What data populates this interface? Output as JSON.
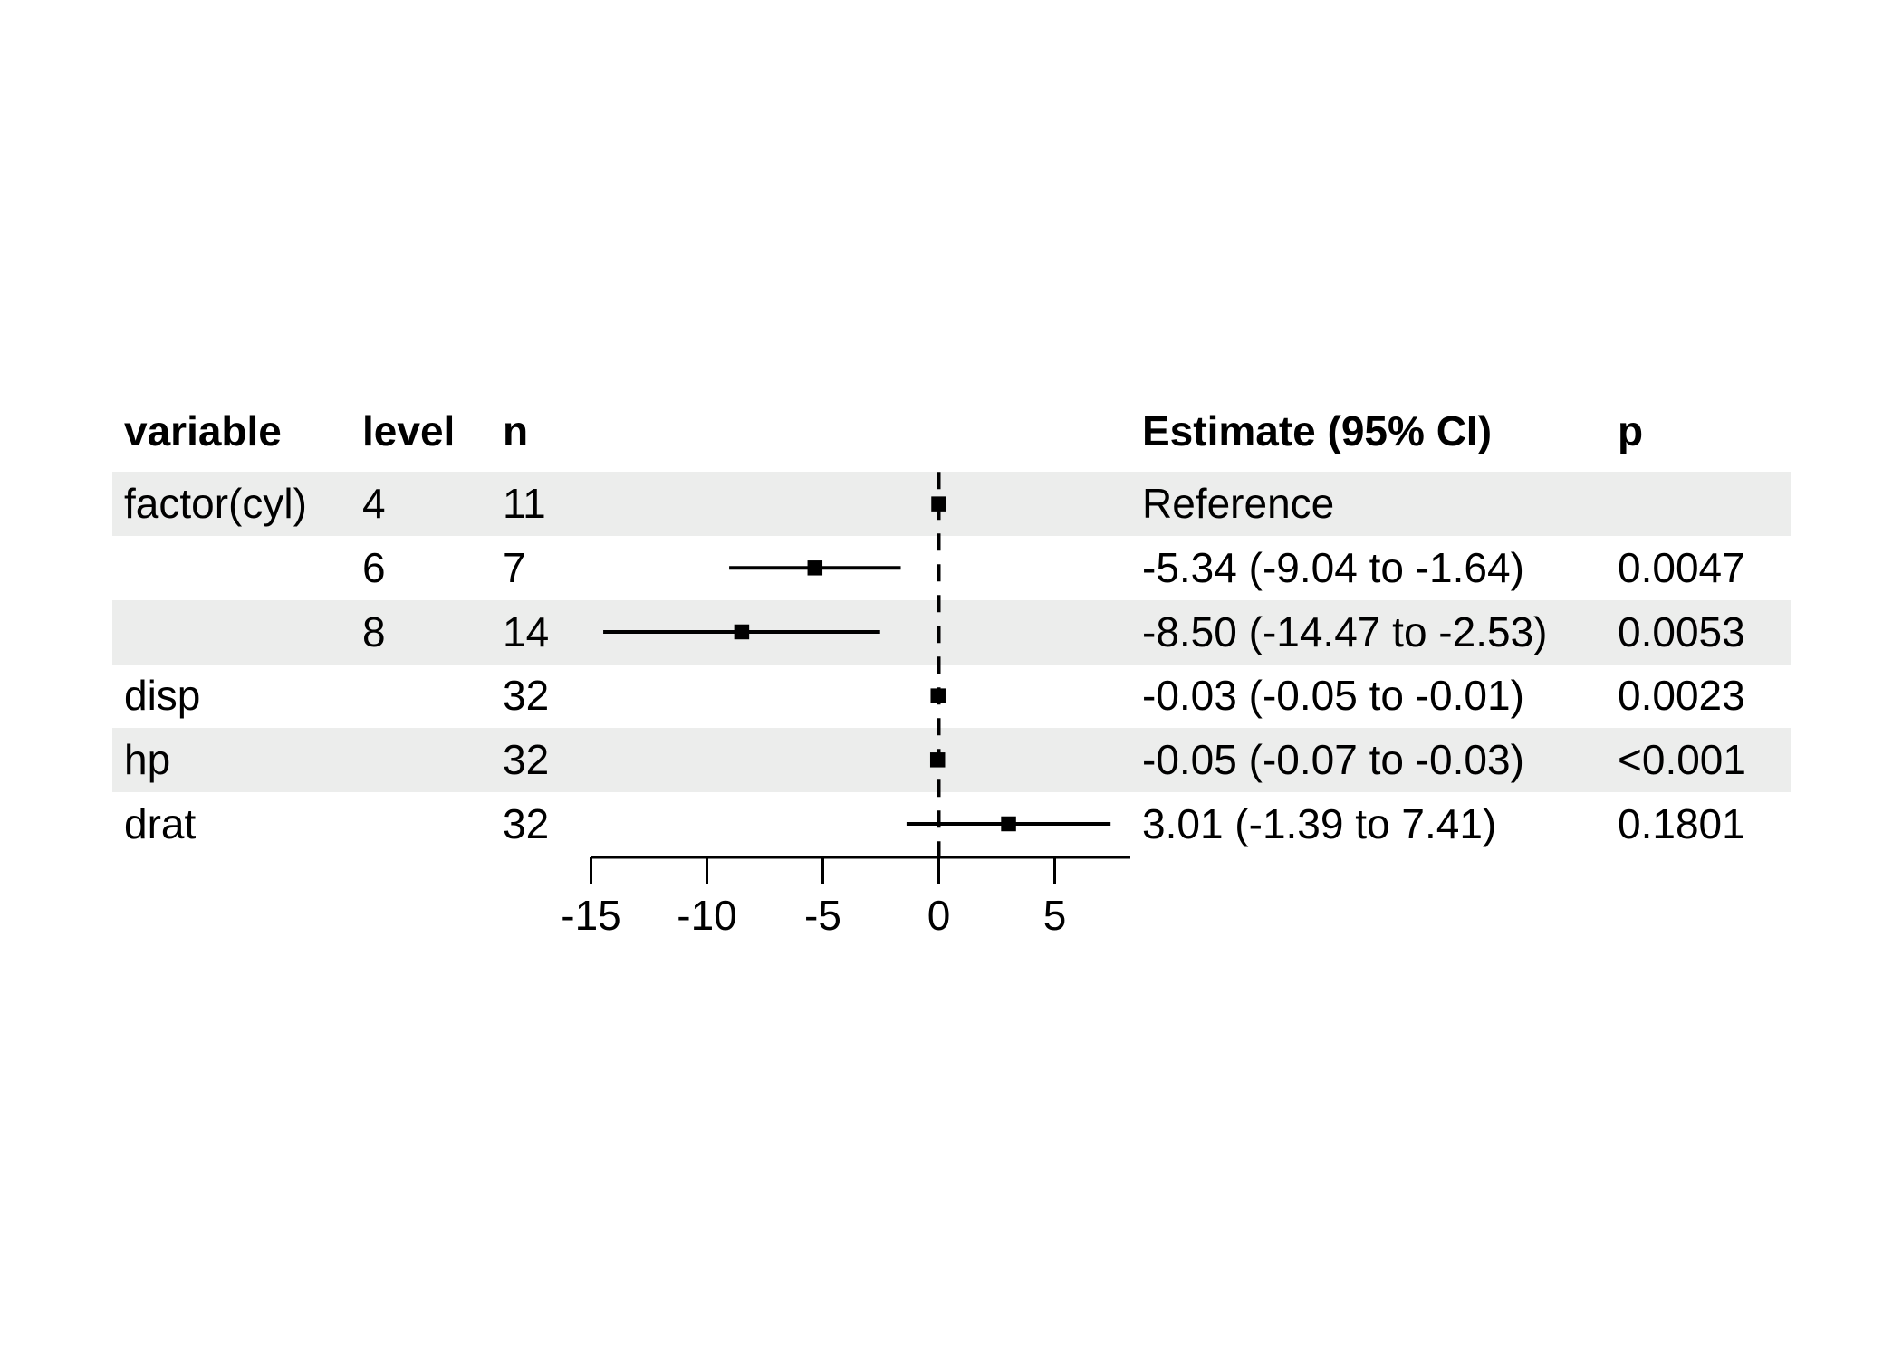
{
  "table": {
    "headers": {
      "variable": "variable",
      "level": "level",
      "n": "n",
      "estimate": "Estimate (95% CI)",
      "p": "p"
    },
    "rows": [
      {
        "variable": "factor(cyl)",
        "level": "4",
        "n": "11",
        "estimate": "Reference",
        "p": "",
        "striped": true
      },
      {
        "variable": "",
        "level": "6",
        "n": "7",
        "estimate": "-5.34 (-9.04 to -1.64)",
        "p": "0.0047",
        "striped": false
      },
      {
        "variable": "",
        "level": "8",
        "n": "14",
        "estimate": "-8.50 (-14.47 to -2.53)",
        "p": "0.0053",
        "striped": true
      },
      {
        "variable": "disp",
        "level": "",
        "n": "32",
        "estimate": "-0.03 (-0.05 to -0.01)",
        "p": "0.0023",
        "striped": false
      },
      {
        "variable": "hp",
        "level": "",
        "n": "32",
        "estimate": "-0.05 (-0.07 to -0.03)",
        "p": "<0.001",
        "striped": true
      },
      {
        "variable": "drat",
        "level": "",
        "n": "32",
        "estimate": "3.01 (-1.39 to 7.41)",
        "p": "0.1801",
        "striped": false
      }
    ]
  },
  "chart_data": {
    "type": "forest",
    "x_ticks": [
      -15,
      -10,
      -5,
      0,
      5
    ],
    "xlim": [
      -15,
      8.3
    ],
    "zero_line": 0,
    "grid": false,
    "points": [
      {
        "label": "factor(cyl) 4",
        "estimate": 0,
        "lo": null,
        "hi": null,
        "reference": true
      },
      {
        "label": "factor(cyl) 6",
        "estimate": -5.34,
        "lo": -9.04,
        "hi": -1.64,
        "reference": false
      },
      {
        "label": "factor(cyl) 8",
        "estimate": -8.5,
        "lo": -14.47,
        "hi": -2.53,
        "reference": false
      },
      {
        "label": "disp",
        "estimate": -0.03,
        "lo": -0.05,
        "hi": -0.01,
        "reference": false
      },
      {
        "label": "hp",
        "estimate": -0.05,
        "lo": -0.07,
        "hi": -0.03,
        "reference": false
      },
      {
        "label": "drat",
        "estimate": 3.01,
        "lo": -1.39,
        "hi": 7.41,
        "reference": false
      }
    ],
    "colors": {
      "marker": "#000000",
      "ci_line": "#000000",
      "zero_line": "#000000",
      "axis": "#000000",
      "stripe": "#ecedec",
      "text": "#000000",
      "background": "#ffffff"
    }
  }
}
